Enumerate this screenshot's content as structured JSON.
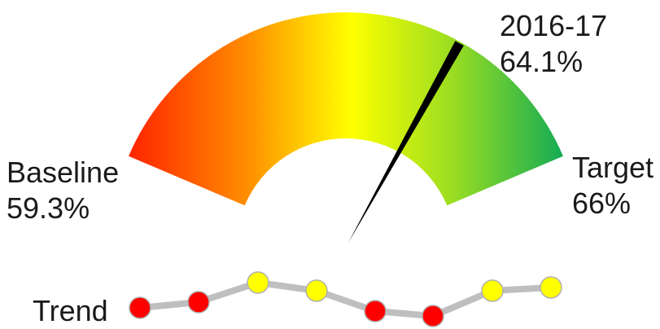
{
  "chart_data": {
    "type": "gauge",
    "baseline": {
      "label": "Baseline",
      "value_text": "59.3%",
      "value": 59.3
    },
    "target": {
      "label": "Target",
      "value_text": "66%",
      "value": 66
    },
    "current": {
      "label": "2016-17",
      "value_text": "64.1%",
      "value": 64.1
    },
    "gauge_colors": [
      "#ff1a00",
      "#ff8a00",
      "#ffff00",
      "#99dd22",
      "#11aa55"
    ],
    "trend": {
      "label": "Trend",
      "line_color": "#bfbfbf",
      "points": [
        {
          "color": "#ff0000"
        },
        {
          "color": "#ff0000"
        },
        {
          "color": "#ffff00"
        },
        {
          "color": "#ffff00"
        },
        {
          "color": "#ff0000"
        },
        {
          "color": "#ff0000"
        },
        {
          "color": "#ffff00"
        },
        {
          "color": "#ffff00"
        }
      ]
    }
  }
}
